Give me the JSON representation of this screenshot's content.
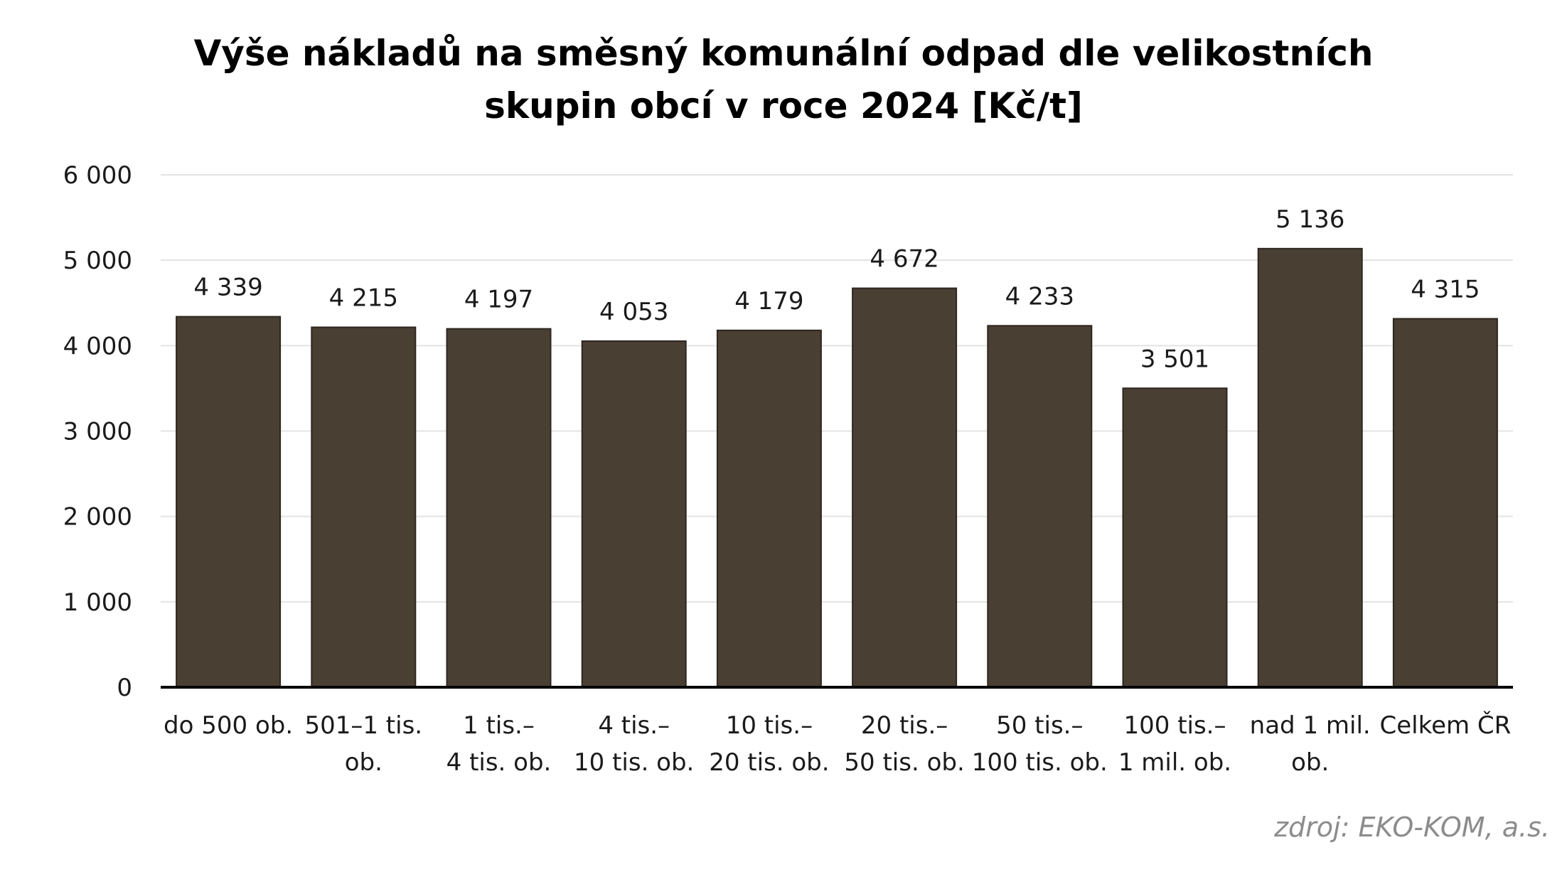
{
  "chart_data": {
    "type": "bar",
    "title_lines": [
      "Výše nákladů na směsný komunální odpad dle velikostních",
      "skupin obcí v roce 2024 [Kč/t]"
    ],
    "categories": [
      [
        "do 500 ob."
      ],
      [
        "501–1 tis.",
        "ob."
      ],
      [
        "1 tis.–",
        "4 tis. ob."
      ],
      [
        "4 tis.–",
        "10 tis. ob."
      ],
      [
        "10 tis.–",
        "20 tis. ob."
      ],
      [
        "20 tis.–",
        "50 tis. ob."
      ],
      [
        "50 tis.–",
        "100 tis. ob."
      ],
      [
        "100 tis.–",
        "1 mil. ob."
      ],
      [
        "nad 1 mil.",
        "ob."
      ],
      [
        "Celkem ČR"
      ]
    ],
    "values": [
      4339,
      4215,
      4197,
      4053,
      4179,
      4672,
      4233,
      3501,
      5136,
      4315
    ],
    "value_labels": [
      "4 339",
      "4 215",
      "4 197",
      "4 053",
      "4 179",
      "4 672",
      "4 233",
      "3 501",
      "5 136",
      "4 315"
    ],
    "yticks": [
      0,
      1000,
      2000,
      3000,
      4000,
      5000,
      6000
    ],
    "ytick_labels": [
      "0",
      "1 000",
      "2 000",
      "3 000",
      "4 000",
      "5 000",
      "6 000"
    ],
    "ylim": [
      0,
      6000
    ],
    "grid": true,
    "legend": "none",
    "bar_color": "#4a3f33"
  },
  "source": "zdroj: EKO-KOM, a.s."
}
